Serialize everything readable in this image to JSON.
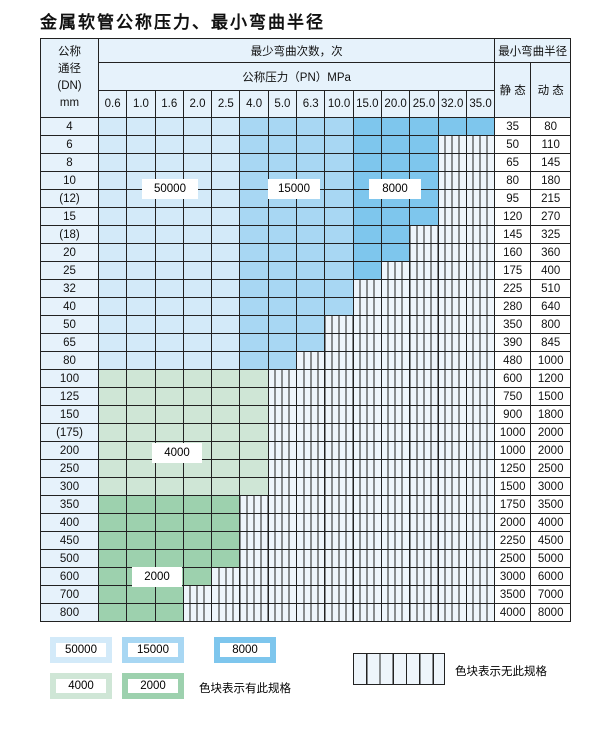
{
  "title": "金属软管公称压力、最小弯曲半径",
  "header": {
    "dn_label": [
      "公称",
      "通径",
      "(DN)",
      "mm"
    ],
    "cycles_label": "最少弯曲次数，次",
    "pressure_label": "公称压力（PN）MPa",
    "radius_label": "最小弯曲半径",
    "static_label": "静 态",
    "dynamic_label": "动 态",
    "pressures": [
      "0.6",
      "1.0",
      "1.6",
      "2.0",
      "2.5",
      "4.0",
      "5.0",
      "6.3",
      "10.0",
      "15.0",
      "20.0",
      "25.0",
      "32.0",
      "35.0"
    ]
  },
  "colors": {
    "50000": "#d3eaf9",
    "15000": "#a8d7f3",
    "8000": "#7ec6ed",
    "4000": "#cfe6d6",
    "2000": "#9dd1ae",
    "none": "#eef5fb"
  },
  "rows": [
    {
      "dn": "4",
      "cells": [
        "50000",
        "50000",
        "50000",
        "50000",
        "50000",
        "15000",
        "15000",
        "15000",
        "15000",
        "8000",
        "8000",
        "8000",
        "8000",
        "8000"
      ],
      "static": "35",
      "dynamic": "80"
    },
    {
      "dn": "6",
      "cells": [
        "50000",
        "50000",
        "50000",
        "50000",
        "50000",
        "15000",
        "15000",
        "15000",
        "15000",
        "8000",
        "8000",
        "8000"
      ],
      "static": "50",
      "dynamic": "110"
    },
    {
      "dn": "8",
      "cells": [
        "50000",
        "50000",
        "50000",
        "50000",
        "50000",
        "15000",
        "15000",
        "15000",
        "15000",
        "8000",
        "8000",
        "8000"
      ],
      "static": "65",
      "dynamic": "145"
    },
    {
      "dn": "10",
      "cells": [
        "50000",
        "50000",
        "50000",
        "50000",
        "50000",
        "15000",
        "15000",
        "15000",
        "15000",
        "8000",
        "8000",
        "8000"
      ],
      "static": "80",
      "dynamic": "180"
    },
    {
      "dn": "(12)",
      "cells": [
        "50000",
        "50000",
        "50000",
        "50000",
        "50000",
        "15000",
        "15000",
        "15000",
        "15000",
        "8000",
        "8000",
        "8000"
      ],
      "static": "95",
      "dynamic": "215"
    },
    {
      "dn": "15",
      "cells": [
        "50000",
        "50000",
        "50000",
        "50000",
        "50000",
        "15000",
        "15000",
        "15000",
        "15000",
        "8000",
        "8000",
        "8000"
      ],
      "static": "120",
      "dynamic": "270"
    },
    {
      "dn": "(18)",
      "cells": [
        "50000",
        "50000",
        "50000",
        "50000",
        "50000",
        "15000",
        "15000",
        "15000",
        "15000",
        "8000",
        "8000"
      ],
      "static": "145",
      "dynamic": "325"
    },
    {
      "dn": "20",
      "cells": [
        "50000",
        "50000",
        "50000",
        "50000",
        "50000",
        "15000",
        "15000",
        "15000",
        "15000",
        "8000",
        "8000"
      ],
      "static": "160",
      "dynamic": "360"
    },
    {
      "dn": "25",
      "cells": [
        "50000",
        "50000",
        "50000",
        "50000",
        "50000",
        "15000",
        "15000",
        "15000",
        "15000",
        "8000"
      ],
      "static": "175",
      "dynamic": "400"
    },
    {
      "dn": "32",
      "cells": [
        "50000",
        "50000",
        "50000",
        "50000",
        "50000",
        "15000",
        "15000",
        "15000",
        "15000"
      ],
      "static": "225",
      "dynamic": "510"
    },
    {
      "dn": "40",
      "cells": [
        "50000",
        "50000",
        "50000",
        "50000",
        "50000",
        "15000",
        "15000",
        "15000",
        "15000"
      ],
      "static": "280",
      "dynamic": "640"
    },
    {
      "dn": "50",
      "cells": [
        "50000",
        "50000",
        "50000",
        "50000",
        "50000",
        "15000",
        "15000",
        "15000"
      ],
      "static": "350",
      "dynamic": "800"
    },
    {
      "dn": "65",
      "cells": [
        "50000",
        "50000",
        "50000",
        "50000",
        "50000",
        "15000",
        "15000",
        "15000"
      ],
      "static": "390",
      "dynamic": "845"
    },
    {
      "dn": "80",
      "cells": [
        "50000",
        "50000",
        "50000",
        "50000",
        "50000",
        "15000",
        "15000"
      ],
      "static": "480",
      "dynamic": "1000"
    },
    {
      "dn": "100",
      "cells": [
        "4000",
        "4000",
        "4000",
        "4000",
        "4000",
        "4000"
      ],
      "static": "600",
      "dynamic": "1200"
    },
    {
      "dn": "125",
      "cells": [
        "4000",
        "4000",
        "4000",
        "4000",
        "4000",
        "4000"
      ],
      "static": "750",
      "dynamic": "1500"
    },
    {
      "dn": "150",
      "cells": [
        "4000",
        "4000",
        "4000",
        "4000",
        "4000",
        "4000"
      ],
      "static": "900",
      "dynamic": "1800"
    },
    {
      "dn": "(175)",
      "cells": [
        "4000",
        "4000",
        "4000",
        "4000",
        "4000",
        "4000"
      ],
      "static": "1000",
      "dynamic": "2000"
    },
    {
      "dn": "200",
      "cells": [
        "4000",
        "4000",
        "4000",
        "4000",
        "4000",
        "4000"
      ],
      "static": "1000",
      "dynamic": "2000"
    },
    {
      "dn": "250",
      "cells": [
        "4000",
        "4000",
        "4000",
        "4000",
        "4000",
        "4000"
      ],
      "static": "1250",
      "dynamic": "2500"
    },
    {
      "dn": "300",
      "cells": [
        "4000",
        "4000",
        "4000",
        "4000",
        "4000",
        "4000"
      ],
      "static": "1500",
      "dynamic": "3000"
    },
    {
      "dn": "350",
      "cells": [
        "2000",
        "2000",
        "2000",
        "2000",
        "2000"
      ],
      "static": "1750",
      "dynamic": "3500"
    },
    {
      "dn": "400",
      "cells": [
        "2000",
        "2000",
        "2000",
        "2000",
        "2000"
      ],
      "static": "2000",
      "dynamic": "4000"
    },
    {
      "dn": "450",
      "cells": [
        "2000",
        "2000",
        "2000",
        "2000",
        "2000"
      ],
      "static": "2250",
      "dynamic": "4500"
    },
    {
      "dn": "500",
      "cells": [
        "2000",
        "2000",
        "2000",
        "2000",
        "2000"
      ],
      "static": "2500",
      "dynamic": "5000"
    },
    {
      "dn": "600",
      "cells": [
        "2000",
        "2000",
        "2000",
        "2000"
      ],
      "static": "3000",
      "dynamic": "6000"
    },
    {
      "dn": "700",
      "cells": [
        "2000",
        "2000",
        "2000"
      ],
      "static": "3500",
      "dynamic": "7000"
    },
    {
      "dn": "800",
      "cells": [
        "2000",
        "2000",
        "2000"
      ],
      "static": "4000",
      "dynamic": "8000"
    }
  ],
  "region_labels": {
    "r50000": "50000",
    "r15000": "15000",
    "r8000": "8000",
    "r4000": "4000",
    "r2000": "2000"
  },
  "legend": {
    "l50000": "50000",
    "l15000": "15000",
    "l8000": "8000",
    "l4000": "4000",
    "l2000": "2000",
    "available": "色块表示有此规格",
    "unavailable": "色块表示无此规格"
  }
}
